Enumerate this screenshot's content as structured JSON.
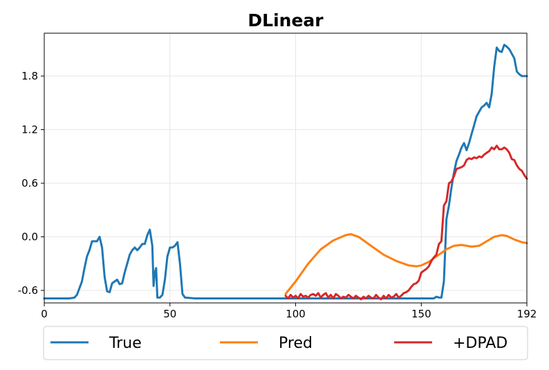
{
  "chart_data": {
    "type": "line",
    "title": "DLinear",
    "xlabel": "",
    "ylabel": "",
    "xlim": [
      0,
      192
    ],
    "ylim": [
      -0.74,
      2.28
    ],
    "xticks": [
      0,
      50,
      100,
      150,
      192
    ],
    "yticks": [
      -0.6,
      0.0,
      0.6,
      1.2,
      1.8
    ],
    "ytick_labels": [
      "-0.6",
      "0.0",
      "0.6",
      "1.2",
      "1.8"
    ],
    "grid": true,
    "legend_position": "bottom",
    "series": [
      {
        "name": "True",
        "color": "#1f77b4",
        "points": [
          [
            0,
            -0.69
          ],
          [
            5,
            -0.69
          ],
          [
            10,
            -0.69
          ],
          [
            12,
            -0.68
          ],
          [
            13,
            -0.65
          ],
          [
            15,
            -0.5
          ],
          [
            16,
            -0.35
          ],
          [
            17,
            -0.22
          ],
          [
            18,
            -0.15
          ],
          [
            19,
            -0.05
          ],
          [
            20,
            -0.05
          ],
          [
            21,
            -0.05
          ],
          [
            22,
            0.0
          ],
          [
            23,
            -0.12
          ],
          [
            24,
            -0.45
          ],
          [
            25,
            -0.61
          ],
          [
            26,
            -0.62
          ],
          [
            27,
            -0.52
          ],
          [
            28,
            -0.5
          ],
          [
            29,
            -0.48
          ],
          [
            30,
            -0.53
          ],
          [
            31,
            -0.52
          ],
          [
            32,
            -0.4
          ],
          [
            33,
            -0.3
          ],
          [
            34,
            -0.2
          ],
          [
            35,
            -0.15
          ],
          [
            36,
            -0.12
          ],
          [
            37,
            -0.15
          ],
          [
            38,
            -0.12
          ],
          [
            39,
            -0.08
          ],
          [
            40,
            -0.08
          ],
          [
            41,
            0.02
          ],
          [
            42,
            0.08
          ],
          [
            43,
            -0.1
          ],
          [
            43.5,
            -0.55
          ],
          [
            44,
            -0.4
          ],
          [
            44.5,
            -0.35
          ],
          [
            45,
            -0.68
          ],
          [
            46,
            -0.68
          ],
          [
            47,
            -0.65
          ],
          [
            48,
            -0.48
          ],
          [
            49,
            -0.22
          ],
          [
            50,
            -0.12
          ],
          [
            51,
            -0.12
          ],
          [
            52,
            -0.1
          ],
          [
            53,
            -0.06
          ],
          [
            54,
            -0.3
          ],
          [
            55,
            -0.64
          ],
          [
            56,
            -0.68
          ],
          [
            60,
            -0.69
          ],
          [
            100,
            -0.69
          ],
          [
            155,
            -0.69
          ],
          [
            156,
            -0.67
          ],
          [
            157,
            -0.68
          ],
          [
            158,
            -0.68
          ],
          [
            159,
            -0.5
          ],
          [
            160,
            0.2
          ],
          [
            161,
            0.35
          ],
          [
            162,
            0.55
          ],
          [
            163,
            0.72
          ],
          [
            164,
            0.85
          ],
          [
            165,
            0.92
          ],
          [
            166,
            1.0
          ],
          [
            167,
            1.05
          ],
          [
            168,
            0.97
          ],
          [
            169,
            1.05
          ],
          [
            170,
            1.15
          ],
          [
            171,
            1.25
          ],
          [
            172,
            1.35
          ],
          [
            173,
            1.4
          ],
          [
            174,
            1.45
          ],
          [
            175,
            1.47
          ],
          [
            176,
            1.5
          ],
          [
            177,
            1.45
          ],
          [
            178,
            1.6
          ],
          [
            179,
            1.9
          ],
          [
            180,
            2.12
          ],
          [
            181,
            2.08
          ],
          [
            182,
            2.07
          ],
          [
            183,
            2.15
          ],
          [
            184,
            2.13
          ],
          [
            185,
            2.1
          ],
          [
            186,
            2.05
          ],
          [
            187,
            2.0
          ],
          [
            188,
            1.85
          ],
          [
            189,
            1.82
          ],
          [
            190,
            1.8
          ],
          [
            191,
            1.8
          ],
          [
            192,
            1.8
          ]
        ]
      },
      {
        "name": "Pred",
        "color": "#ff7f0e",
        "points": [
          [
            96,
            -0.64
          ],
          [
            100,
            -0.5
          ],
          [
            105,
            -0.3
          ],
          [
            110,
            -0.14
          ],
          [
            115,
            -0.04
          ],
          [
            120,
            0.02
          ],
          [
            122,
            0.03
          ],
          [
            125,
            0.0
          ],
          [
            130,
            -0.1
          ],
          [
            135,
            -0.2
          ],
          [
            140,
            -0.27
          ],
          [
            145,
            -0.32
          ],
          [
            148,
            -0.33
          ],
          [
            150,
            -0.32
          ],
          [
            153,
            -0.28
          ],
          [
            156,
            -0.22
          ],
          [
            160,
            -0.14
          ],
          [
            163,
            -0.1
          ],
          [
            166,
            -0.09
          ],
          [
            170,
            -0.11
          ],
          [
            173,
            -0.1
          ],
          [
            176,
            -0.05
          ],
          [
            179,
            0.0
          ],
          [
            182,
            0.02
          ],
          [
            184,
            0.01
          ],
          [
            187,
            -0.03
          ],
          [
            190,
            -0.06
          ],
          [
            192,
            -0.07
          ]
        ]
      },
      {
        "name": "+DPAD",
        "color": "#d62728",
        "points": [
          [
            96,
            -0.66
          ],
          [
            97,
            -0.69
          ],
          [
            98,
            -0.65
          ],
          [
            99,
            -0.68
          ],
          [
            100,
            -0.66
          ],
          [
            101,
            -0.69
          ],
          [
            102,
            -0.64
          ],
          [
            103,
            -0.67
          ],
          [
            104,
            -0.66
          ],
          [
            105,
            -0.68
          ],
          [
            106,
            -0.65
          ],
          [
            107,
            -0.64
          ],
          [
            108,
            -0.66
          ],
          [
            109,
            -0.63
          ],
          [
            110,
            -0.68
          ],
          [
            111,
            -0.65
          ],
          [
            112,
            -0.63
          ],
          [
            113,
            -0.68
          ],
          [
            114,
            -0.65
          ],
          [
            115,
            -0.69
          ],
          [
            116,
            -0.64
          ],
          [
            117,
            -0.66
          ],
          [
            118,
            -0.69
          ],
          [
            119,
            -0.67
          ],
          [
            120,
            -0.68
          ],
          [
            121,
            -0.65
          ],
          [
            122,
            -0.67
          ],
          [
            123,
            -0.69
          ],
          [
            124,
            -0.66
          ],
          [
            125,
            -0.68
          ],
          [
            126,
            -0.7
          ],
          [
            127,
            -0.67
          ],
          [
            128,
            -0.69
          ],
          [
            129,
            -0.66
          ],
          [
            130,
            -0.68
          ],
          [
            131,
            -0.69
          ],
          [
            132,
            -0.65
          ],
          [
            133,
            -0.68
          ],
          [
            134,
            -0.7
          ],
          [
            135,
            -0.66
          ],
          [
            136,
            -0.69
          ],
          [
            137,
            -0.65
          ],
          [
            138,
            -0.68
          ],
          [
            139,
            -0.67
          ],
          [
            140,
            -0.64
          ],
          [
            141,
            -0.68
          ],
          [
            142,
            -0.66
          ],
          [
            143,
            -0.63
          ],
          [
            144,
            -0.62
          ],
          [
            145,
            -0.6
          ],
          [
            146,
            -0.56
          ],
          [
            147,
            -0.53
          ],
          [
            148,
            -0.52
          ],
          [
            149,
            -0.49
          ],
          [
            150,
            -0.4
          ],
          [
            151,
            -0.38
          ],
          [
            152,
            -0.36
          ],
          [
            153,
            -0.33
          ],
          [
            154,
            -0.27
          ],
          [
            155,
            -0.23
          ],
          [
            156,
            -0.2
          ],
          [
            157,
            -0.08
          ],
          [
            158,
            -0.05
          ],
          [
            159,
            0.35
          ],
          [
            160,
            0.4
          ],
          [
            161,
            0.6
          ],
          [
            162,
            0.62
          ],
          [
            163,
            0.68
          ],
          [
            164,
            0.76
          ],
          [
            165,
            0.77
          ],
          [
            166,
            0.78
          ],
          [
            167,
            0.8
          ],
          [
            168,
            0.86
          ],
          [
            169,
            0.88
          ],
          [
            170,
            0.87
          ],
          [
            171,
            0.89
          ],
          [
            172,
            0.88
          ],
          [
            173,
            0.9
          ],
          [
            174,
            0.89
          ],
          [
            175,
            0.92
          ],
          [
            176,
            0.94
          ],
          [
            177,
            0.96
          ],
          [
            178,
            1.0
          ],
          [
            179,
            0.98
          ],
          [
            180,
            1.02
          ],
          [
            181,
            0.98
          ],
          [
            182,
            0.98
          ],
          [
            183,
            1.0
          ],
          [
            184,
            0.98
          ],
          [
            185,
            0.94
          ],
          [
            186,
            0.87
          ],
          [
            187,
            0.86
          ],
          [
            188,
            0.8
          ],
          [
            189,
            0.76
          ],
          [
            190,
            0.74
          ],
          [
            191,
            0.69
          ],
          [
            192,
            0.65
          ]
        ]
      }
    ]
  }
}
